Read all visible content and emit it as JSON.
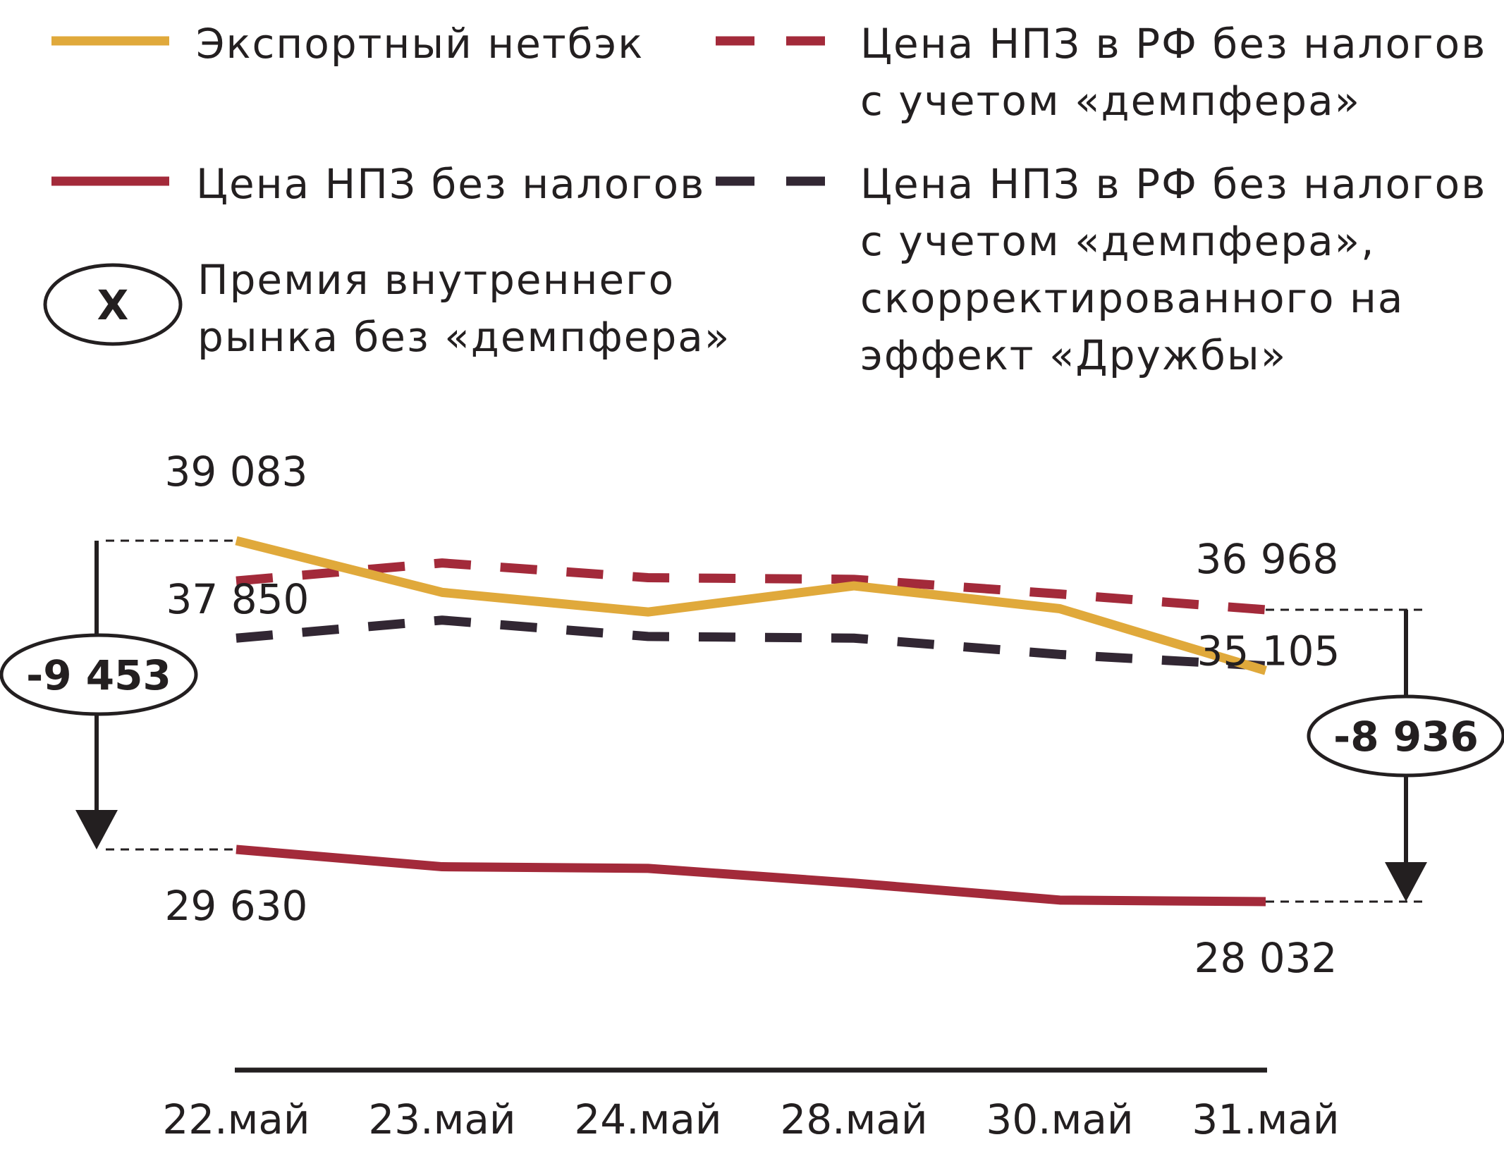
{
  "chart_data": {
    "type": "line",
    "categories": [
      "22.май",
      "23.май",
      "24.май",
      "28.май",
      "30.май",
      "31.май"
    ],
    "ylim": [
      26000,
      41000
    ],
    "series": [
      {
        "name": "Экспортный нетбэк",
        "values": [
          39083,
          37500,
          36900,
          37700,
          37000,
          35105
        ],
        "color": "#e0a93b",
        "dash": "solid"
      },
      {
        "name": "Цена НПЗ без налогов",
        "values": [
          29630,
          29100,
          29050,
          28600,
          28080,
          28032
        ],
        "color": "#a32a3a",
        "dash": "solid"
      },
      {
        "name": "Цена НПЗ в РФ без налогов с учетом «демпфера»",
        "values": [
          37850,
          38400,
          37950,
          37900,
          37450,
          36968
        ],
        "color": "#a32a3a",
        "dash": "dashed"
      },
      {
        "name": "Цена НПЗ в РФ без налогов с учетом  «демпфера», скорректированного на эффект «Дружбы»",
        "values": [
          36100,
          36650,
          36150,
          36100,
          35600,
          35250
        ],
        "color": "#322733",
        "dash": "dashed"
      }
    ],
    "point_labels": [
      {
        "text": "39 083"
      },
      {
        "text": "37 850"
      },
      {
        "text": "29 630"
      },
      {
        "text": "36 968"
      },
      {
        "text": "35 105"
      },
      {
        "text": "28 032"
      }
    ],
    "premium_markers": [
      {
        "text": "-9 453",
        "from": 39083,
        "to": 29630,
        "category": "22.май"
      },
      {
        "text": "-8 936",
        "from": 36968,
        "to": 28032,
        "category": "31.май"
      }
    ]
  },
  "legend": {
    "export_netback": "Экспортный нетбэк",
    "refinery_price": "Цена НПЗ без налогов",
    "damper_line1": "Цена НПЗ в РФ без налогов",
    "damper_line2": "с учетом «демпфера»",
    "druzhba_line1": "Цена НПЗ в РФ без налогов",
    "druzhba_line2": "с учетом  «демпфера»,",
    "druzhba_line3": "скорректированного  на",
    "druzhba_line4": "эффект «Дружбы»",
    "premium_symbol": "X",
    "premium_line1": "Премия внутреннего",
    "premium_line2": "рынка без «демпфера»"
  }
}
